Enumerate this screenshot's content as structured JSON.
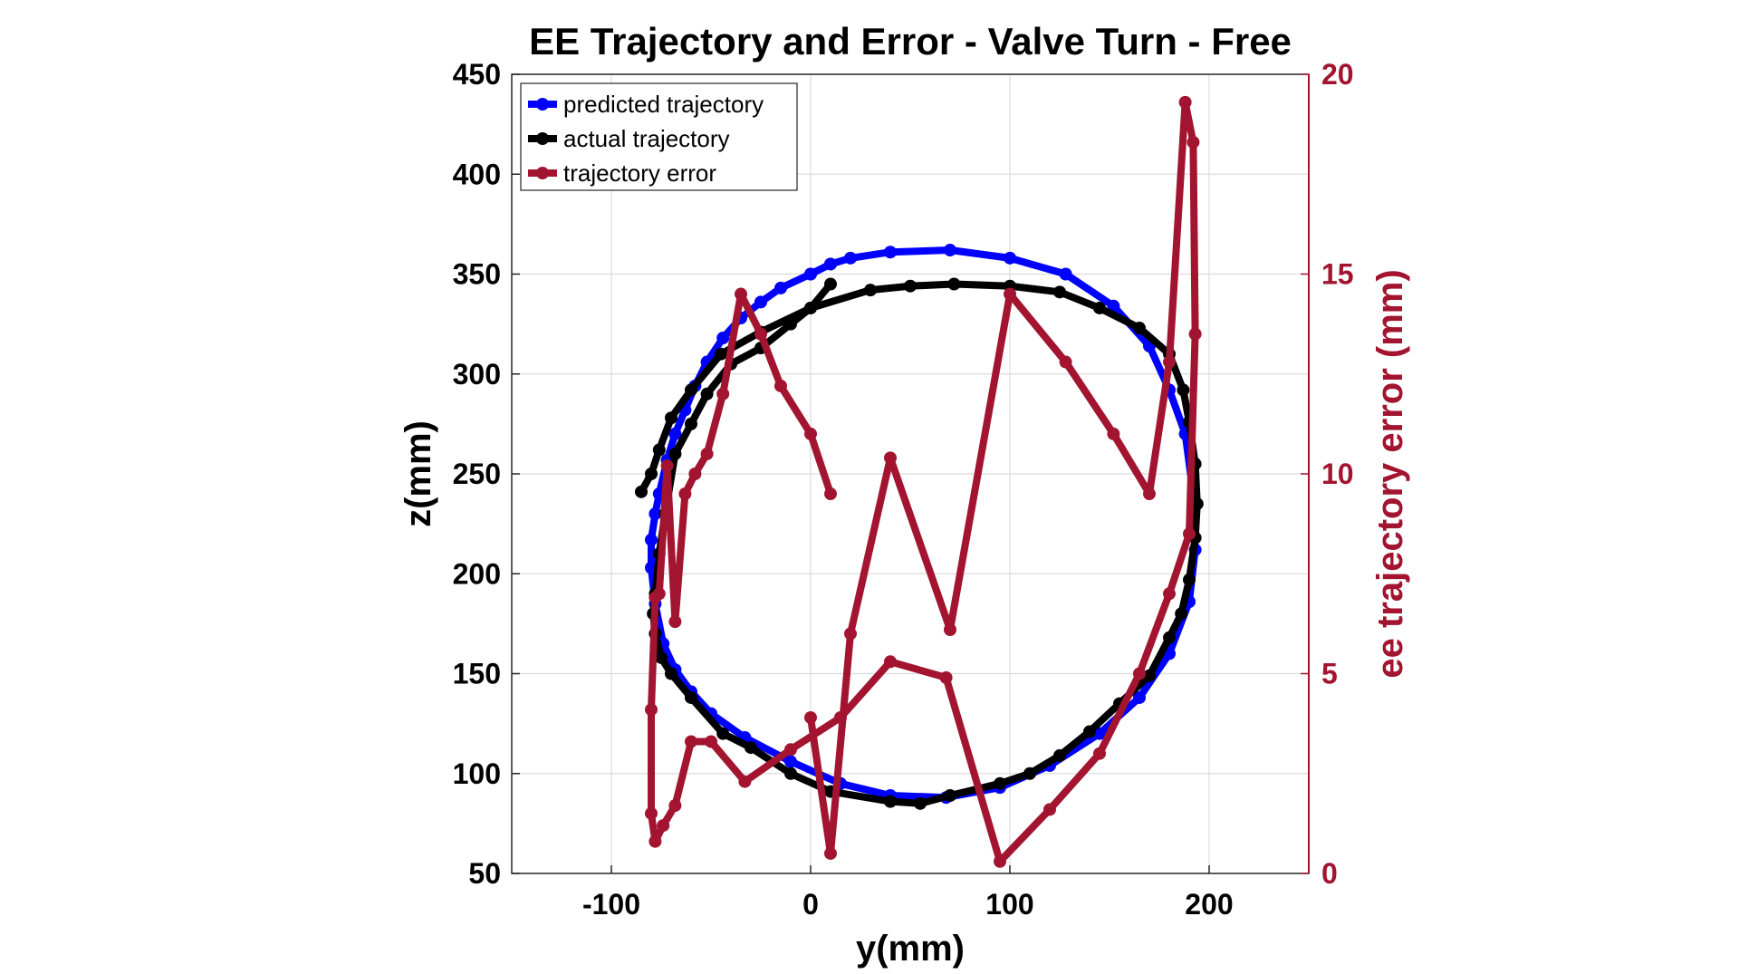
{
  "chart_data": {
    "type": "line",
    "title": "EE Trajectory and Error - Valve Turn - Free",
    "xlabel": "y(mm)",
    "ylabel": "z(mm)",
    "y2label": "ee trajectory error (mm)",
    "xlim": [
      -150,
      250
    ],
    "ylim": [
      50,
      450
    ],
    "y2lim": [
      0,
      20
    ],
    "xticks": [
      -100,
      0,
      100,
      200
    ],
    "yticks": [
      50,
      100,
      150,
      200,
      250,
      300,
      350,
      400,
      450
    ],
    "y2ticks": [
      0,
      5,
      10,
      15,
      20
    ],
    "grid": true,
    "legend_position": "top-left",
    "colors": {
      "predicted": "#0000FF",
      "actual": "#000000",
      "error": "#A2142F"
    },
    "series": [
      {
        "name": "predicted trajectory",
        "axis": "left",
        "x": [
          10,
          0,
          -15,
          -25,
          -35,
          -44,
          -52,
          -58,
          -63,
          -68,
          -72,
          -76,
          -78,
          -80,
          -80,
          -78,
          -74,
          -68,
          -60,
          -50,
          -33,
          -10,
          15,
          40,
          68,
          95,
          120,
          145,
          165,
          180,
          190,
          193,
          192,
          188,
          180,
          170,
          152,
          128,
          100,
          70,
          40,
          20,
          10,
          0
        ],
        "y": [
          355,
          350,
          343,
          336,
          328,
          318,
          306,
          294,
          282,
          270,
          257,
          240,
          230,
          217,
          203,
          185,
          165,
          152,
          141,
          130,
          118,
          106,
          95,
          89,
          88,
          93,
          104,
          120,
          138,
          160,
          186,
          212,
          240,
          270,
          292,
          314,
          334,
          350,
          358,
          362,
          361,
          358,
          355,
          350
        ]
      },
      {
        "name": "actual trajectory",
        "axis": "left",
        "x": [
          10,
          0,
          -10,
          -25,
          -40,
          -52,
          -60,
          -68,
          -73,
          -76,
          -78,
          -79,
          -78,
          -75,
          -70,
          -60,
          -44,
          -30,
          -10,
          10,
          40,
          55,
          70,
          95,
          110,
          125,
          140,
          155,
          170,
          180,
          186,
          190,
          193,
          194,
          193,
          190,
          187,
          180,
          165,
          145,
          125,
          100,
          72,
          50,
          30,
          0,
          -25,
          -45,
          -60,
          -70,
          -76,
          -80,
          -85
        ],
        "y": [
          345,
          333,
          325,
          313,
          305,
          290,
          275,
          260,
          230,
          210,
          190,
          180,
          170,
          158,
          150,
          138,
          120,
          113,
          100,
          91,
          86,
          85,
          89,
          95,
          100,
          109,
          121,
          135,
          149,
          168,
          180,
          197,
          218,
          235,
          255,
          276,
          292,
          310,
          323,
          333,
          341,
          344,
          345,
          344,
          342,
          333,
          321,
          310,
          292,
          278,
          262,
          250,
          241
        ]
      },
      {
        "name": "trajectory error",
        "axis": "right",
        "x": [
          10,
          0,
          -15,
          -25,
          -35,
          -44,
          -52,
          -58,
          -63,
          -68,
          -72,
          -76,
          -78,
          -80,
          -80,
          -78,
          -74,
          -68,
          -60,
          -50,
          -33,
          -10,
          15,
          40,
          68,
          95,
          120,
          145,
          165,
          180,
          190,
          193,
          192,
          188,
          180,
          170,
          152,
          128,
          100,
          70,
          40,
          20,
          10,
          0
        ],
        "y": [
          9.5,
          11,
          12.2,
          13.5,
          14.5,
          12,
          10.5,
          10,
          9.5,
          6.3,
          10.2,
          7,
          6.9,
          4.1,
          1.5,
          0.8,
          1.2,
          1.7,
          3.3,
          3.3,
          2.3,
          3.1,
          3.9,
          5.3,
          4.9,
          0.3,
          1.6,
          3.0,
          5.0,
          7.0,
          8.5,
          13.5,
          18.3,
          19.3,
          12.8,
          9.5,
          11,
          12.8,
          14.5,
          6.1,
          10.4,
          6.0,
          0.5,
          3.9
        ]
      }
    ]
  }
}
